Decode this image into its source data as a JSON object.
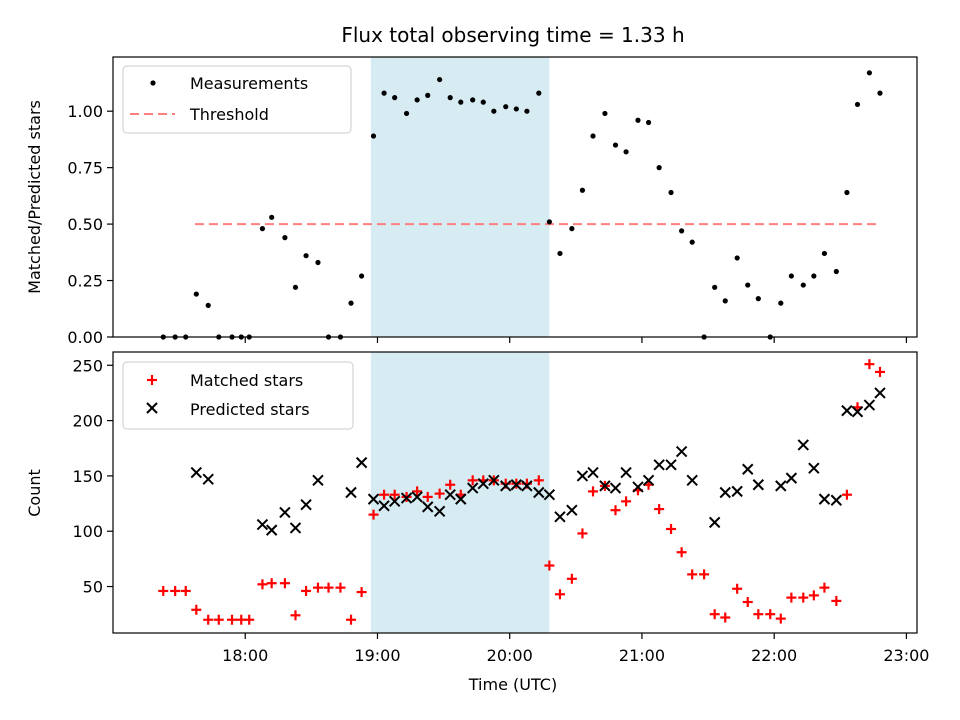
{
  "chart_data": [
    {
      "type": "scatter",
      "title": "Flux total observing time = 1.33 h",
      "xlabel": "",
      "ylabel": "Matched/Predicted stars",
      "ylim": [
        0,
        1.24
      ],
      "yticks": [
        "0.00",
        "0.25",
        "0.50",
        "0.75",
        "1.00"
      ],
      "ytick_values": [
        0,
        0.25,
        0.5,
        0.75,
        1.0
      ],
      "x_unit": "hours UTC",
      "highlight_span": [
        18.95,
        20.3
      ],
      "legend": {
        "placement": "upper-left",
        "entries": [
          "Measurements",
          "Threshold"
        ]
      },
      "threshold": {
        "name": "Threshold",
        "value": 0.5,
        "x_range": [
          17.62,
          22.8
        ],
        "color": "#ff7f7f"
      },
      "series": [
        {
          "name": "Measurements",
          "color": "#000000",
          "points": [
            [
              17.38,
              0.0
            ],
            [
              17.47,
              0.0
            ],
            [
              17.55,
              0.0
            ],
            [
              17.63,
              0.19
            ],
            [
              17.72,
              0.14
            ],
            [
              17.8,
              0.0
            ],
            [
              17.9,
              0.0
            ],
            [
              17.97,
              0.0
            ],
            [
              18.03,
              0.0
            ],
            [
              18.13,
              0.48
            ],
            [
              18.2,
              0.53
            ],
            [
              18.3,
              0.44
            ],
            [
              18.38,
              0.22
            ],
            [
              18.46,
              0.36
            ],
            [
              18.55,
              0.33
            ],
            [
              18.63,
              0.0
            ],
            [
              18.72,
              0.0
            ],
            [
              18.8,
              0.15
            ],
            [
              18.88,
              0.27
            ],
            [
              18.97,
              0.89
            ],
            [
              19.05,
              1.08
            ],
            [
              19.13,
              1.06
            ],
            [
              19.22,
              0.99
            ],
            [
              19.3,
              1.05
            ],
            [
              19.38,
              1.07
            ],
            [
              19.47,
              1.14
            ],
            [
              19.55,
              1.06
            ],
            [
              19.63,
              1.04
            ],
            [
              19.72,
              1.05
            ],
            [
              19.8,
              1.04
            ],
            [
              19.88,
              1.0
            ],
            [
              19.97,
              1.02
            ],
            [
              20.05,
              1.01
            ],
            [
              20.13,
              1.0
            ],
            [
              20.22,
              1.08
            ],
            [
              20.3,
              0.51
            ],
            [
              20.38,
              0.37
            ],
            [
              20.47,
              0.48
            ],
            [
              20.55,
              0.65
            ],
            [
              20.63,
              0.89
            ],
            [
              20.72,
              0.99
            ],
            [
              20.8,
              0.85
            ],
            [
              20.88,
              0.82
            ],
            [
              20.97,
              0.96
            ],
            [
              21.05,
              0.95
            ],
            [
              21.13,
              0.75
            ],
            [
              21.22,
              0.64
            ],
            [
              21.3,
              0.47
            ],
            [
              21.38,
              0.42
            ],
            [
              21.47,
              0.0
            ],
            [
              21.55,
              0.22
            ],
            [
              21.63,
              0.16
            ],
            [
              21.72,
              0.35
            ],
            [
              21.8,
              0.23
            ],
            [
              21.88,
              0.17
            ],
            [
              21.97,
              0.0
            ],
            [
              22.05,
              0.15
            ],
            [
              22.13,
              0.27
            ],
            [
              22.22,
              0.23
            ],
            [
              22.3,
              0.27
            ],
            [
              22.38,
              0.37
            ],
            [
              22.47,
              0.29
            ],
            [
              22.55,
              0.64
            ],
            [
              22.63,
              1.03
            ],
            [
              22.72,
              1.17
            ],
            [
              22.8,
              1.08
            ]
          ]
        }
      ]
    },
    {
      "type": "scatter",
      "title": "",
      "xlabel": "Time (UTC)",
      "ylabel": "Count",
      "ylim": [
        8,
        262
      ],
      "yticks": [
        "50",
        "100",
        "150",
        "200",
        "250"
      ],
      "ytick_values": [
        50,
        100,
        150,
        200,
        250
      ],
      "xlim": [
        17.0,
        23.08
      ],
      "xticks": [
        "18:00",
        "19:00",
        "20:00",
        "21:00",
        "22:00",
        "23:00"
      ],
      "xtick_values": [
        18,
        19,
        20,
        21,
        22,
        23
      ],
      "highlight_span": [
        18.95,
        20.3
      ],
      "legend": {
        "placement": "upper-left",
        "entries": [
          "Matched stars",
          "Predicted stars"
        ]
      },
      "series": [
        {
          "name": "Matched stars",
          "color": "#ff0000",
          "marker": "plus",
          "points": [
            [
              17.38,
              46
            ],
            [
              17.47,
              46
            ],
            [
              17.55,
              46
            ],
            [
              17.63,
              29
            ],
            [
              17.72,
              20
            ],
            [
              17.8,
              20
            ],
            [
              17.9,
              20
            ],
            [
              17.97,
              20
            ],
            [
              18.03,
              20
            ],
            [
              18.13,
              52
            ],
            [
              18.2,
              53
            ],
            [
              18.3,
              53
            ],
            [
              18.38,
              24
            ],
            [
              18.46,
              46
            ],
            [
              18.55,
              49
            ],
            [
              18.63,
              49
            ],
            [
              18.72,
              49
            ],
            [
              18.8,
              20
            ],
            [
              18.88,
              45
            ],
            [
              18.97,
              115
            ],
            [
              19.05,
              133
            ],
            [
              19.13,
              133
            ],
            [
              19.22,
              131
            ],
            [
              19.3,
              136
            ],
            [
              19.38,
              131
            ],
            [
              19.47,
              134
            ],
            [
              19.55,
              142
            ],
            [
              19.63,
              133
            ],
            [
              19.72,
              146
            ],
            [
              19.8,
              146
            ],
            [
              19.88,
              146
            ],
            [
              19.97,
              143
            ],
            [
              20.05,
              143
            ],
            [
              20.13,
              143
            ],
            [
              20.22,
              146
            ],
            [
              20.3,
              69
            ],
            [
              20.38,
              43
            ],
            [
              20.47,
              57
            ],
            [
              20.55,
              98
            ],
            [
              20.63,
              136
            ],
            [
              20.72,
              141
            ],
            [
              20.8,
              119
            ],
            [
              20.88,
              127
            ],
            [
              20.97,
              137
            ],
            [
              21.05,
              142
            ],
            [
              21.13,
              120
            ],
            [
              21.22,
              102
            ],
            [
              21.3,
              81
            ],
            [
              21.38,
              61
            ],
            [
              21.47,
              61
            ],
            [
              21.55,
              25
            ],
            [
              21.63,
              22
            ],
            [
              21.72,
              48
            ],
            [
              21.8,
              36
            ],
            [
              21.88,
              25
            ],
            [
              21.97,
              25
            ],
            [
              22.05,
              21
            ],
            [
              22.13,
              40
            ],
            [
              22.22,
              40
            ],
            [
              22.3,
              42
            ],
            [
              22.38,
              49
            ],
            [
              22.47,
              37
            ],
            [
              22.55,
              133
            ],
            [
              22.63,
              212
            ],
            [
              22.72,
              251
            ],
            [
              22.8,
              244
            ]
          ]
        },
        {
          "name": "Predicted stars",
          "color": "#000000",
          "marker": "x",
          "points": [
            [
              17.63,
              153
            ],
            [
              17.72,
              147
            ],
            [
              18.13,
              106
            ],
            [
              18.2,
              101
            ],
            [
              18.3,
              117
            ],
            [
              18.38,
              103
            ],
            [
              18.46,
              124
            ],
            [
              18.55,
              146
            ],
            [
              18.8,
              135
            ],
            [
              18.88,
              162
            ],
            [
              18.97,
              129
            ],
            [
              19.05,
              123
            ],
            [
              19.13,
              127
            ],
            [
              19.22,
              130
            ],
            [
              19.3,
              131
            ],
            [
              19.38,
              122
            ],
            [
              19.47,
              118
            ],
            [
              19.55,
              133
            ],
            [
              19.63,
              129
            ],
            [
              19.72,
              139
            ],
            [
              19.8,
              143
            ],
            [
              19.88,
              146
            ],
            [
              19.97,
              141
            ],
            [
              20.05,
              142
            ],
            [
              20.13,
              141
            ],
            [
              20.22,
              135
            ],
            [
              20.3,
              133
            ],
            [
              20.38,
              113
            ],
            [
              20.47,
              119
            ],
            [
              20.55,
              150
            ],
            [
              20.63,
              153
            ],
            [
              20.72,
              141
            ],
            [
              20.8,
              139
            ],
            [
              20.88,
              153
            ],
            [
              20.97,
              140
            ],
            [
              21.05,
              146
            ],
            [
              21.13,
              160
            ],
            [
              21.22,
              160
            ],
            [
              21.3,
              172
            ],
            [
              21.38,
              146
            ],
            [
              21.55,
              108
            ],
            [
              21.63,
              135
            ],
            [
              21.72,
              136
            ],
            [
              21.8,
              156
            ],
            [
              21.88,
              142
            ],
            [
              22.05,
              141
            ],
            [
              22.13,
              148
            ],
            [
              22.22,
              178
            ],
            [
              22.3,
              157
            ],
            [
              22.38,
              129
            ],
            [
              22.47,
              128
            ],
            [
              22.55,
              209
            ],
            [
              22.63,
              208
            ],
            [
              22.72,
              214
            ],
            [
              22.8,
              225
            ]
          ]
        }
      ]
    }
  ],
  "colors": {
    "highlight_span": "#add8e6",
    "threshold": "#ff7f7f",
    "matched": "#ff0000",
    "predicted": "#000000"
  }
}
